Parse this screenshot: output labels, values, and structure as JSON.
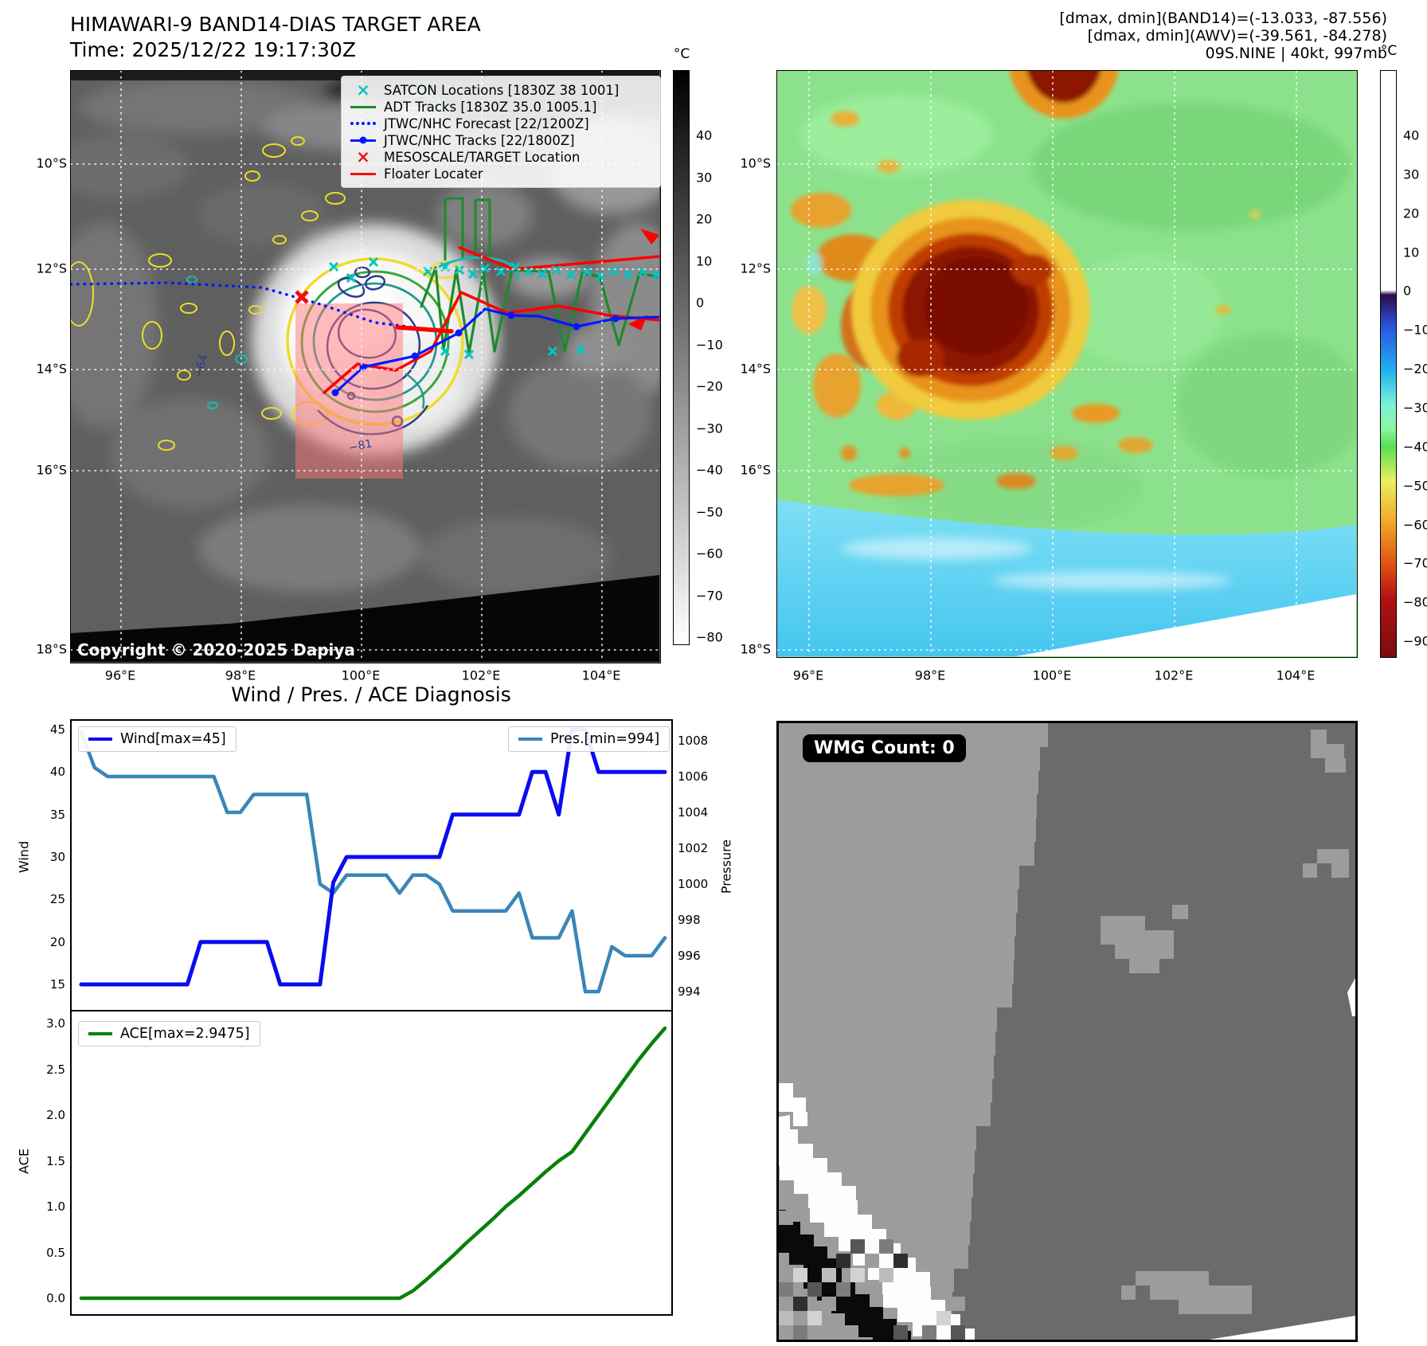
{
  "header": {
    "title_line1": "HIMAWARI-9 BAND14-DIAS TARGET AREA",
    "title_line2": "Time: 2025/12/22 19:17:30Z",
    "right_line1": "[dmax, dmin](BAND14)=(-13.033, -87.556)",
    "right_line2": "[dmax, dmin](AWV)=(-39.561, -84.278)",
    "right_line3": "09S.NINE | 40kt, 997mb"
  },
  "left_map": {
    "legend": [
      {
        "marker": "cyan-x",
        "label": "SATCON Locations [1830Z 38 1001]",
        "color": "#00c4c4"
      },
      {
        "marker": "green-line",
        "label": "ADT Tracks [1830Z 35.0 1005.1]",
        "color": "#1d8a2e"
      },
      {
        "marker": "blue-dotted-line",
        "label": "JTWC/NHC Forecast [22/1200Z]",
        "color": "#0018ff"
      },
      {
        "marker": "blue-line-dot",
        "label": "JTWC/NHC Tracks [22/1800Z]",
        "color": "#0018ff"
      },
      {
        "marker": "red-x",
        "label": "MESOSCALE/TARGET Location",
        "color": "#ee1111"
      },
      {
        "marker": "red-line",
        "label": "Floater Locater",
        "color": "#ee1111"
      }
    ],
    "lat_ticks": [
      "10°S",
      "12°S",
      "14°S",
      "16°S",
      "18°S"
    ],
    "lon_ticks": [
      "96°E",
      "98°E",
      "100°E",
      "102°E",
      "104°E"
    ],
    "copyright": "Copyright © 2020-2025 Dapiya",
    "contour_labels": [
      "−64",
      "−81"
    ],
    "colorbar": {
      "unit": "°C",
      "ticks": [
        "40",
        "30",
        "20",
        "10",
        "0",
        "−10",
        "−20",
        "−30",
        "−40",
        "−50",
        "−60",
        "−70",
        "−80"
      ]
    }
  },
  "right_map": {
    "lat_ticks": [
      "10°S",
      "12°S",
      "14°S",
      "16°S",
      "18°S"
    ],
    "lon_ticks": [
      "96°E",
      "98°E",
      "100°E",
      "102°E",
      "104°E"
    ],
    "colorbar": {
      "unit": "°C",
      "ticks": [
        "40",
        "30",
        "20",
        "10",
        "0",
        "−10",
        "−20",
        "−30",
        "−40",
        "−50",
        "−60",
        "−70",
        "−80",
        "−90"
      ]
    }
  },
  "wmg": {
    "count_label": "WMG Count: 0"
  },
  "chart_data": [
    {
      "type": "line",
      "title": "Wind / Pres. / ACE Diagnosis",
      "ylabel_left": "Wind",
      "ylabel_right": "Pressure",
      "yticks_left": [
        "45",
        "40",
        "35",
        "30",
        "25",
        "20",
        "15"
      ],
      "yticks_right": [
        "1008",
        "1006",
        "1004",
        "1002",
        "1000",
        "998",
        "996",
        "994"
      ],
      "ylim_left": [
        12,
        46
      ],
      "ylim_right": [
        993,
        1009.1
      ],
      "grid": false,
      "legend_position": "upper-left and upper-right",
      "series": [
        {
          "name": "Wind[max=45]",
          "axis": "left",
          "color": "#0b0bf0",
          "values": [
            15,
            15,
            15,
            15,
            15,
            15,
            15,
            15,
            15,
            20,
            20,
            20,
            20,
            20,
            20,
            15,
            15,
            15,
            15,
            27,
            30,
            30,
            30,
            30,
            30,
            30,
            30,
            30,
            35,
            35,
            35,
            35,
            35,
            35,
            40,
            40,
            35,
            45,
            45,
            40,
            40,
            40,
            40,
            40,
            40
          ]
        },
        {
          "name": "Pres.[min=994]",
          "axis": "right",
          "color": "#3a85b8",
          "values": [
            1008.5,
            1006.5,
            1006,
            1006,
            1006,
            1006,
            1006,
            1006,
            1006,
            1006,
            1006,
            1004,
            1004,
            1005,
            1005,
            1005,
            1005,
            1005,
            1000,
            999.5,
            1000.5,
            1000.5,
            1000.5,
            1000.5,
            999.5,
            1000.5,
            1000.5,
            1000,
            998.5,
            998.5,
            998.5,
            998.5,
            998.5,
            999.5,
            997,
            997,
            997,
            998.5,
            994,
            994,
            996.5,
            996,
            996,
            996,
            997
          ]
        }
      ]
    },
    {
      "type": "line",
      "ylabel": "ACE",
      "yticks": [
        "3.0",
        "2.5",
        "2.0",
        "1.5",
        "1.0",
        "0.5",
        "0.0"
      ],
      "ylim": [
        -0.19,
        3.13
      ],
      "grid": false,
      "legend_position": "upper-left",
      "series": [
        {
          "name": "ACE[max=2.9475]",
          "color": "#0a800a",
          "values": [
            0,
            0,
            0,
            0,
            0,
            0,
            0,
            0,
            0,
            0,
            0,
            0,
            0,
            0,
            0,
            0,
            0,
            0,
            0,
            0,
            0,
            0,
            0,
            0,
            0,
            0.08,
            0.2,
            0.33,
            0.46,
            0.6,
            0.73,
            0.86,
            1.0,
            1.12,
            1.25,
            1.38,
            1.5,
            1.6,
            1.8,
            2.0,
            2.2,
            2.4,
            2.6,
            2.78,
            2.9475
          ]
        }
      ]
    }
  ]
}
